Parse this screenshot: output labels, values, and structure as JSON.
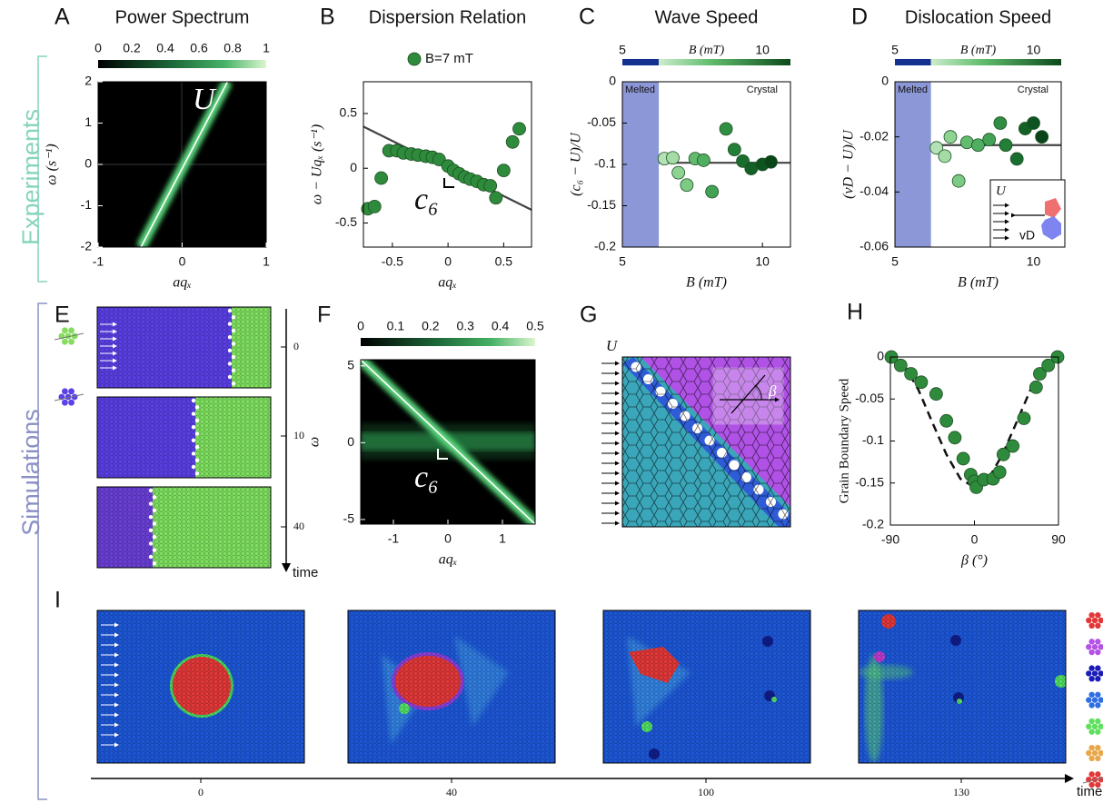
{
  "side_labels": [
    "Experiments",
    "Simulations"
  ],
  "chart_data": [
    {
      "panel": "A",
      "type": "heatmap",
      "title": "Power Spectrum",
      "xlabel": "aqₓ",
      "ylabel": "ω (s⁻¹)",
      "xlim": [
        -1,
        1
      ],
      "xticks": [
        -1,
        0,
        1
      ],
      "ylim": [
        -2,
        2
      ],
      "yticks": [
        -2,
        -1,
        0,
        1,
        2
      ],
      "colorbar": {
        "lim": [
          0,
          1
        ],
        "ticks": [
          0,
          0.2,
          0.4,
          0.6,
          0.8,
          1
        ]
      },
      "fit": {
        "x": [
          -0.49,
          0.54
        ],
        "y": [
          -2,
          2
        ],
        "color": "#ffffff"
      },
      "annotations": [
        "U"
      ]
    },
    {
      "panel": "B",
      "type": "scatter",
      "title": "Dispersion Relation",
      "xlabel": "aqₓ",
      "ylabel": "ω − Uqₓ (s⁻¹)",
      "xlim": [
        -0.76,
        0.75
      ],
      "xticks": [
        -0.5,
        0,
        0.5
      ],
      "ylim": [
        -0.72,
        0.79
      ],
      "yticks": [
        -0.5,
        0,
        0.5
      ],
      "series": [
        {
          "name": "B=7 mT",
          "color": "#2e8b3c",
          "x": [
            -0.72,
            -0.66,
            -0.6,
            -0.53,
            -0.46,
            -0.4,
            -0.33,
            -0.27,
            -0.2,
            -0.14,
            -0.08,
            0,
            0.05,
            0.1,
            0.15,
            0.2,
            0.26,
            0.32,
            0.38,
            0.43,
            0.5,
            0.58,
            0.64
          ],
          "values": [
            -0.37,
            -0.35,
            -0.09,
            0.16,
            0.16,
            0.14,
            0.13,
            0.12,
            0.11,
            0.1,
            0.08,
            0.02,
            -0.02,
            -0.05,
            -0.08,
            -0.1,
            -0.12,
            -0.15,
            -0.16,
            -0.27,
            -0.02,
            0.24,
            0.36
          ]
        }
      ],
      "fit": {
        "x": [
          -0.76,
          0.75
        ],
        "y": [
          0.38,
          -0.38
        ],
        "color": "#444444"
      },
      "annotations": [
        "c₆"
      ]
    },
    {
      "panel": "C",
      "type": "scatter",
      "title": "Wave Speed",
      "xlabel": "B (mT)",
      "ylabel": "(c₆ − U)/U",
      "xlim": [
        5,
        11
      ],
      "xticks": [
        5,
        10
      ],
      "ylim": [
        -0.2,
        0
      ],
      "yticks": [
        -0.2,
        -0.15,
        -0.1,
        -0.05,
        0
      ],
      "colorbar": {
        "label": "B (mT)",
        "lim": [
          5,
          11
        ],
        "ticks": [
          5,
          10
        ],
        "labels": [
          "Melted",
          "Crystal"
        ],
        "melted": [
          5,
          6.3
        ]
      },
      "x": [
        6.5,
        6.8,
        7.0,
        7.3,
        7.6,
        7.9,
        8.2,
        8.7,
        9.0,
        9.3,
        9.6,
        10.0,
        10.3
      ],
      "values": [
        -0.093,
        -0.092,
        -0.11,
        -0.125,
        -0.093,
        -0.095,
        -0.133,
        -0.057,
        -0.082,
        -0.096,
        -0.105,
        -0.1,
        -0.097
      ],
      "colors": [
        "#b4e2b4",
        "#a5dca6",
        "#8fd393",
        "#7cca84",
        "#62bb6f",
        "#50ae60",
        "#43a254",
        "#2f8e42",
        "#237e37",
        "#1a6e2d",
        "#136126",
        "#0e5420",
        "#0a451a"
      ],
      "fit": {
        "x": [
          6.3,
          11
        ],
        "y": [
          -0.098,
          -0.098
        ],
        "color": "#444444"
      }
    },
    {
      "panel": "D",
      "type": "scatter",
      "title": "Dislocation Speed",
      "xlabel": "B (mT)",
      "ylabel": "(vD − U)/U",
      "xlim": [
        5,
        11
      ],
      "xticks": [
        5,
        10
      ],
      "ylim": [
        -0.06,
        0
      ],
      "yticks": [
        -0.06,
        -0.04,
        -0.02,
        0
      ],
      "colorbar": {
        "label": "B (mT)",
        "lim": [
          5,
          11
        ],
        "ticks": [
          5,
          10
        ],
        "labels": [
          "Melted",
          "Crystal"
        ],
        "melted": [
          5,
          6.3
        ]
      },
      "x": [
        6.5,
        6.8,
        7.0,
        7.3,
        7.6,
        8.0,
        8.4,
        8.8,
        9.0,
        9.4,
        9.7,
        10.0,
        10.3
      ],
      "values": [
        -0.024,
        -0.027,
        -0.02,
        -0.036,
        -0.022,
        -0.023,
        -0.021,
        -0.015,
        -0.023,
        -0.028,
        -0.017,
        -0.015,
        -0.02
      ],
      "colors": [
        "#b4e2b4",
        "#a5dca6",
        "#8fd393",
        "#7cca84",
        "#62bb6f",
        "#50ae60",
        "#43a254",
        "#2f8e42",
        "#237e37",
        "#1a6e2d",
        "#136126",
        "#0e5420",
        "#0a451a"
      ],
      "fit": {
        "x": [
          6.3,
          11
        ],
        "y": [
          -0.023,
          -0.023
        ],
        "color": "#444444"
      },
      "inset": {
        "labels": [
          "U",
          "vD"
        ]
      }
    },
    {
      "panel": "F",
      "type": "heatmap",
      "xlabel": "aqₓ",
      "ylabel": "ω",
      "xlim": [
        -1.6,
        1.6
      ],
      "xticks": [
        -1,
        0,
        1
      ],
      "ylim": [
        -5.3,
        5.4
      ],
      "yticks": [
        -5,
        0,
        5
      ],
      "colorbar": {
        "lim": [
          0,
          0.5
        ],
        "ticks": [
          0,
          0.1,
          0.2,
          0.3,
          0.4,
          0.5
        ]
      },
      "fit": {
        "x": [
          -1.6,
          1.6
        ],
        "y": [
          5.4,
          -5.3
        ],
        "color": "#ffffff"
      },
      "annotations": [
        "c₆"
      ]
    },
    {
      "panel": "H",
      "type": "scatter",
      "xlabel": "β (°)",
      "ylabel": "Grain Boundary Speed",
      "xlim": [
        -90,
        90
      ],
      "xticks": [
        -90,
        0,
        90
      ],
      "ylim": [
        -0.2,
        0
      ],
      "yticks": [
        -0.2,
        -0.15,
        -0.1,
        -0.05,
        0
      ],
      "color": "#2e8b3c",
      "x": [
        -89,
        -79,
        -68,
        -57,
        -41,
        -30,
        -21,
        -12,
        -4,
        0,
        2,
        10,
        20,
        27,
        31,
        41,
        53,
        66,
        70,
        79,
        89
      ],
      "values": [
        0,
        -0.01,
        -0.02,
        -0.03,
        -0.044,
        -0.076,
        -0.096,
        -0.121,
        -0.14,
        -0.148,
        -0.155,
        -0.146,
        -0.145,
        -0.137,
        -0.116,
        -0.106,
        -0.073,
        -0.036,
        -0.02,
        -0.01,
        0
      ],
      "fit": {
        "x": [
          -90,
          -75,
          -60,
          -45,
          -30,
          -15,
          0,
          15,
          30,
          45,
          60,
          75,
          90
        ],
        "y": [
          0,
          -0.01,
          -0.039,
          -0.078,
          -0.116,
          -0.145,
          -0.155,
          -0.145,
          -0.116,
          -0.078,
          -0.039,
          -0.01,
          0
        ],
        "color": "#111111",
        "dash": true
      }
    }
  ],
  "simulations": {
    "E": {
      "panel": "E",
      "time_ticks": [
        0,
        10,
        40
      ],
      "time_label": "time"
    },
    "G": {
      "panel": "G",
      "annotations": [
        "U",
        "β"
      ]
    },
    "I": {
      "panel": "I",
      "time_ticks": [
        0,
        40,
        100,
        130
      ],
      "time_label": "time"
    }
  }
}
